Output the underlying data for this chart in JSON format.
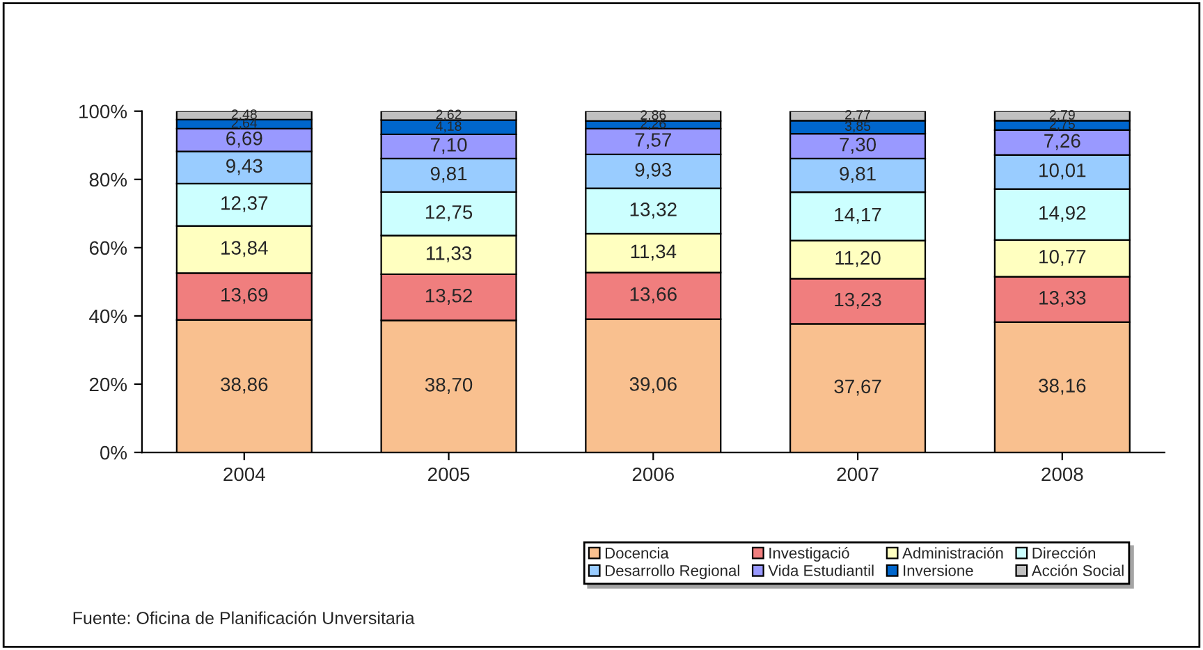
{
  "chart_data": {
    "type": "bar",
    "stacked": true,
    "categories": [
      "2004",
      "2005",
      "2006",
      "2007",
      "2008"
    ],
    "series": [
      {
        "name": "Docencia",
        "color": "#f9c08f",
        "values": [
          38.86,
          38.7,
          39.06,
          37.67,
          38.16
        ],
        "value_labels": [
          "38,86",
          "38,70",
          "39,06",
          "37,67",
          "38,16"
        ]
      },
      {
        "name": "Investigació",
        "color": "#f07e7e",
        "values": [
          13.69,
          13.52,
          13.66,
          13.23,
          13.33
        ],
        "value_labels": [
          "13,69",
          "13,52",
          "13,66",
          "13,23",
          "13,33"
        ]
      },
      {
        "name": "Administración",
        "color": "#ffffc0",
        "values": [
          13.84,
          11.33,
          11.34,
          11.2,
          10.77
        ],
        "value_labels": [
          "13,84",
          "11,33",
          "11,34",
          "11,20",
          "10,77"
        ]
      },
      {
        "name": "Dirección",
        "color": "#ccffff",
        "values": [
          12.37,
          12.75,
          13.32,
          14.17,
          14.92
        ],
        "value_labels": [
          "12,37",
          "12,75",
          "13,32",
          "14,17",
          "14,92"
        ]
      },
      {
        "name": "Desarrollo Regional",
        "color": "#99ccff",
        "values": [
          9.43,
          9.81,
          9.93,
          9.81,
          10.01
        ],
        "value_labels": [
          "9,43",
          "9,81",
          "9,93",
          "9,81",
          "10,01"
        ]
      },
      {
        "name": "Vida Estudiantil",
        "color": "#9999ff",
        "values": [
          6.69,
          7.1,
          7.57,
          7.3,
          7.26
        ],
        "value_labels": [
          "6,69",
          "7,10",
          "7,57",
          "7,30",
          "7,26"
        ]
      },
      {
        "name": "Inversione",
        "color": "#0066cc",
        "values": [
          2.64,
          4.18,
          2.26,
          3.85,
          2.75
        ],
        "value_labels": [
          "2,64",
          "4,18",
          "2,26",
          "3,85",
          "2,75"
        ]
      },
      {
        "name": "Acción Social",
        "color": "#c0c0c0",
        "values": [
          2.48,
          2.62,
          2.86,
          2.77,
          2.79
        ],
        "value_labels": [
          "2,48",
          "2,62",
          "2,86",
          "2,77",
          "2,79"
        ]
      }
    ],
    "ylim": [
      0,
      100
    ],
    "yticks": [
      {
        "value": 0,
        "label": "0%"
      },
      {
        "value": 20,
        "label": "20%"
      },
      {
        "value": 40,
        "label": "40%"
      },
      {
        "value": 60,
        "label": "60%"
      },
      {
        "value": 80,
        "label": "80%"
      },
      {
        "value": 100,
        "label": "100%"
      }
    ],
    "legend": "bottom right",
    "annotations": [
      "Fuente: Oficina de Planificación Unversitaria"
    ]
  }
}
